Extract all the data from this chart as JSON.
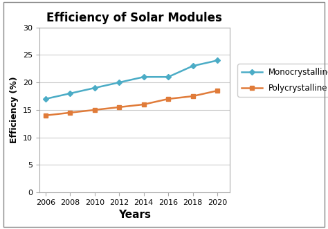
{
  "title": "Efficiency of Solar Modules",
  "xlabel": "Years",
  "ylabel": "Efficiency (%)",
  "years": [
    2006,
    2008,
    2010,
    2012,
    2014,
    2016,
    2018,
    2020
  ],
  "mono_values": [
    17,
    18,
    19,
    20,
    21,
    21,
    23,
    24
  ],
  "poly_values": [
    14,
    14.5,
    15,
    15.5,
    16,
    17,
    17.5,
    18.5
  ],
  "mono_color": "#4bacc6",
  "poly_color": "#e07b39",
  "mono_label": "Monocrystalline",
  "poly_label": "Polycrystalline",
  "ylim": [
    0,
    30
  ],
  "yticks": [
    0,
    5,
    10,
    15,
    20,
    25,
    30
  ],
  "xlim": [
    2005.5,
    2021
  ],
  "bg_color": "#ffffff",
  "fig_bg": "#ffffff",
  "grid_color": "#cccccc",
  "border_color": "#aaaaaa"
}
